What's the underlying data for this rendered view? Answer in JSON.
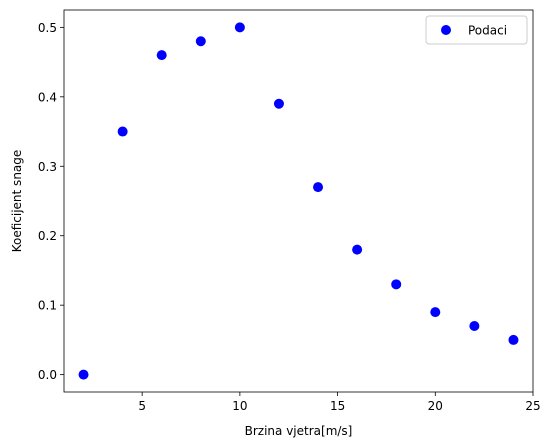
{
  "chart_data": {
    "type": "scatter",
    "title": "",
    "xlabel": "Brzina vjetra[m/s]",
    "ylabel": "Koeficijent snage",
    "xlim": [
      1.0,
      25.0
    ],
    "ylim": [
      -0.025,
      0.525
    ],
    "xticks": [
      5,
      10,
      15,
      20,
      25
    ],
    "yticks": [
      0.0,
      0.1,
      0.2,
      0.3,
      0.4,
      0.5
    ],
    "xtick_labels": [
      "5",
      "10",
      "15",
      "20",
      "25"
    ],
    "ytick_labels": [
      "0.0",
      "0.1",
      "0.2",
      "0.3",
      "0.4",
      "0.5"
    ],
    "grid": false,
    "legend": "upper-right",
    "series": [
      {
        "name": "Podaci",
        "marker": "circle",
        "color": "#0000ff",
        "x": [
          2,
          4,
          6,
          8,
          10,
          12,
          14,
          16,
          18,
          20,
          22,
          24
        ],
        "y": [
          0.0,
          0.35,
          0.46,
          0.48,
          0.5,
          0.39,
          0.27,
          0.18,
          0.13,
          0.09,
          0.07,
          0.05
        ]
      }
    ]
  }
}
